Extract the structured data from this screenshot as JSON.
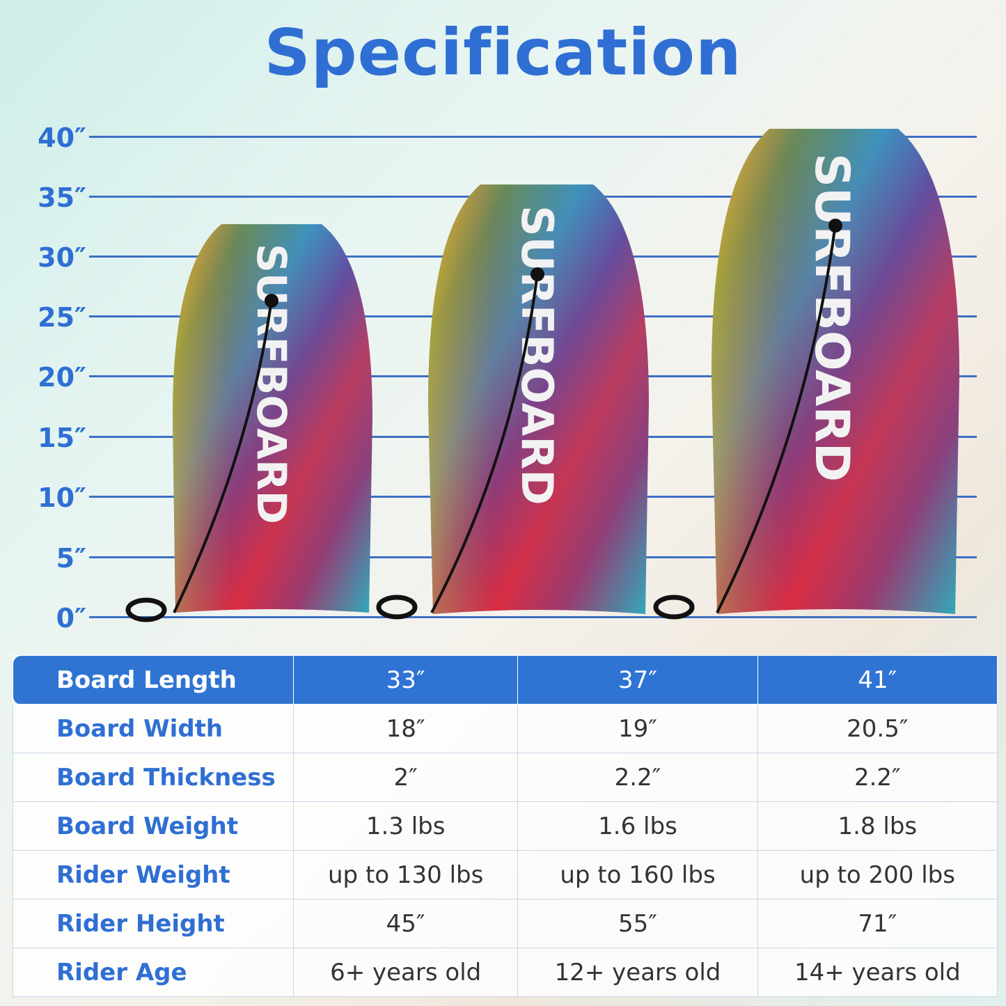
{
  "title": "Specification",
  "ruler": {
    "ticks": [
      "40″",
      "35″",
      "30″",
      "25″",
      "20″",
      "15″",
      "10″",
      "5″",
      "0″"
    ],
    "color": "#2f6fd3"
  },
  "boards": [
    {
      "length_in": 33,
      "print": "SURFBOARD"
    },
    {
      "length_in": 37,
      "print": "SURFBOARD"
    },
    {
      "length_in": 41,
      "print": "SURFBOARD"
    }
  ],
  "table": {
    "header": {
      "label": "Board Length",
      "values": [
        "33″",
        "37″",
        "41″"
      ]
    },
    "rows": [
      {
        "label": "Board Width",
        "values": [
          "18″",
          "19″",
          "20.5″"
        ]
      },
      {
        "label": "Board Thickness",
        "values": [
          "2″",
          "2.2″",
          "2.2″"
        ]
      },
      {
        "label": "Board Weight",
        "values": [
          "1.3 lbs",
          "1.6 lbs",
          "1.8 lbs"
        ]
      },
      {
        "label": "Rider Weight",
        "values": [
          "up to 130 lbs",
          "up to 160 lbs",
          "up to 200 lbs"
        ]
      },
      {
        "label": "Rider Height",
        "values": [
          "45″",
          "55″",
          "71″"
        ]
      },
      {
        "label": "Rider Age",
        "values": [
          "6+ years old",
          "12+ years old",
          "14+ years old"
        ]
      }
    ]
  }
}
